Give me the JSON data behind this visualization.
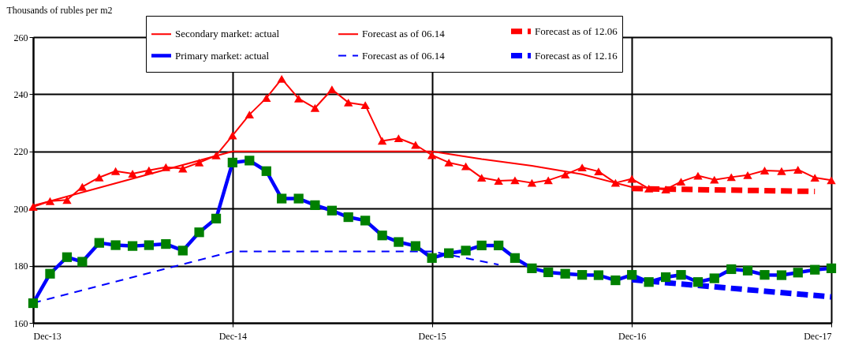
{
  "chart_data": {
    "type": "line",
    "ylabel": "Thousands of rubles per m2",
    "xlim": [
      "2013-12",
      "2017-12"
    ],
    "xticks": [
      {
        "value": "2013-12",
        "label": "Dec-13"
      },
      {
        "value": "2014-12",
        "label": "Dec-14"
      },
      {
        "value": "2015-12",
        "label": "Dec-15"
      },
      {
        "value": "2016-12",
        "label": "Dec-16"
      },
      {
        "value": "2017-12",
        "label": "Dec-17"
      }
    ],
    "ylim": [
      160,
      260
    ],
    "yticks": [
      160,
      180,
      200,
      220,
      240,
      260
    ],
    "grid": true,
    "legend": "top",
    "x": [
      "2013-12",
      "2014-01",
      "2014-02",
      "2014-03",
      "2014-04",
      "2014-05",
      "2014-06",
      "2014-07",
      "2014-08",
      "2014-09",
      "2014-10",
      "2014-11",
      "2014-12",
      "2015-01",
      "2015-02",
      "2015-03",
      "2015-04",
      "2015-05",
      "2015-06",
      "2015-07",
      "2015-08",
      "2015-09",
      "2015-10",
      "2015-11",
      "2015-12",
      "2016-01",
      "2016-02",
      "2016-03",
      "2016-04",
      "2016-05",
      "2016-06",
      "2016-07",
      "2016-08",
      "2016-09",
      "2016-10",
      "2016-11",
      "2016-12",
      "2017-01",
      "2017-02",
      "2017-03",
      "2017-04",
      "2017-05",
      "2017-06",
      "2017-07",
      "2017-08",
      "2017-09",
      "2017-10",
      "2017-11",
      "2017-12"
    ],
    "series": [
      {
        "name": "Secondary market: actual",
        "color": "#ff0000",
        "marker": "triangle",
        "line_style": "solid",
        "values": [
          200.6,
          202.6,
          203,
          207.6,
          210.9,
          213.1,
          212.2,
          213.4,
          214.5,
          214,
          216.1,
          218.6,
          225.6,
          232.9,
          238.7,
          245.4,
          238.5,
          235.2,
          241.7,
          237.1,
          236.2,
          223.7,
          224.6,
          222.3,
          218.7,
          216.1,
          214.8,
          210.8,
          209.7,
          209.9,
          209,
          209.9,
          211.9,
          214.4,
          213,
          209,
          210.4,
          207,
          206.7,
          209.4,
          211.5,
          210.1,
          211,
          211.7,
          213.3,
          213.1,
          213.6,
          210.8,
          209.9
        ]
      },
      {
        "name": "Primary market: actual",
        "color": "#0000ff",
        "marker": "square",
        "line_style": "solid",
        "values": [
          166.9,
          177.2,
          183,
          181.4,
          188,
          187.2,
          186.9,
          187.2,
          187.6,
          185.3,
          191.7,
          196.5,
          216.1,
          216.8,
          213.1,
          203.5,
          203.5,
          201.2,
          199.3,
          197,
          195.8,
          190.6,
          188.3,
          186.9,
          182.7,
          184.4,
          185.3,
          187.1,
          187.1,
          182.7,
          179.1,
          177.7,
          177.2,
          176.8,
          176.7,
          174.9,
          176.8,
          174.3,
          176,
          176.8,
          174.3,
          175.6,
          178.8,
          178.3,
          176.8,
          176.7,
          177.6,
          178.6,
          179.1
        ]
      },
      {
        "name": "Forecast as of 06.14",
        "color": "#ff0000",
        "marker": "none",
        "line_style": "solid",
        "x": [
          "2013-12",
          "2014-12",
          "2015-12",
          "2016-03",
          "2016-06",
          "2016-09",
          "2016-12",
          "2017-02"
        ],
        "values": [
          201,
          220,
          220,
          217.3,
          215,
          212,
          207.5,
          207
        ]
      },
      {
        "name": "Forecast as of 06.14",
        "color": "#0000ff",
        "marker": "none",
        "line_style": "dashed",
        "x": [
          "2013-12",
          "2014-12",
          "2015-12",
          "2016-04"
        ],
        "values": [
          167,
          185,
          185,
          180.4
        ]
      },
      {
        "name": "Forecast as of 12.06",
        "color": "#ff0000",
        "marker": "none",
        "line_style": "dashed",
        "x": [
          "2016-12",
          "2017-11"
        ],
        "values": [
          207,
          206
        ]
      },
      {
        "name": "Forecast as of 12.16",
        "color": "#0000ff",
        "marker": "none",
        "line_style": "dashed",
        "x": [
          "2016-12",
          "2017-12"
        ],
        "values": [
          175.1,
          169.1
        ]
      }
    ]
  }
}
